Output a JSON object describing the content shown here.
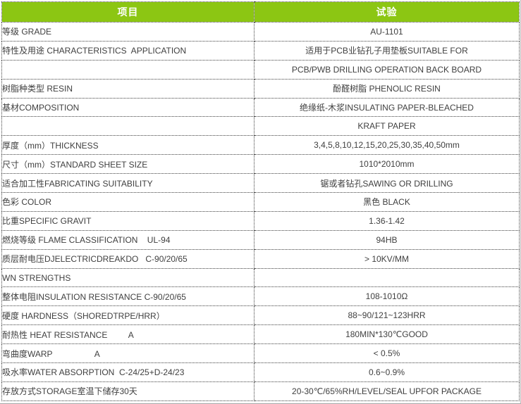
{
  "colors": {
    "header_bg": "#8CC613",
    "header_text": "#FFFFFF",
    "body_text": "#3F3F3F",
    "border": "#404040"
  },
  "table": {
    "headers": {
      "item": "项目",
      "value": "试验"
    },
    "rows": [
      {
        "item": "等级 GRADE",
        "value": "AU-1101"
      },
      {
        "item": "特性及用途 CHARACTERISTICS  APPLICATION",
        "value": "适用于PCB业钻孔子用垫板SUITABLE FOR"
      },
      {
        "item": "",
        "value": "PCB/PWB DRILLING OPERATION BACK BOARD"
      },
      {
        "item": "树脂种类型 RESIN",
        "value": "酚醛树脂 PHENOLIC RESIN"
      },
      {
        "item": "基材COMPOSITION",
        "value": "绝缘纸-木浆INSULATING PAPER-BLEACHED"
      },
      {
        "item": "",
        "value": "KRAFT PAPER"
      },
      {
        "item": "厚度（mm）THICKNESS",
        "value": "3,4,5,8,10,12,15,20,25,30,35,40,50mm"
      },
      {
        "item": "尺寸（mm）STANDARD SHEET SIZE",
        "value": "1010*2010mm"
      },
      {
        "item": "适合加工性FABRICATING SUITABILITY",
        "value": "锯或者钻孔SAWING OR DRILLING"
      },
      {
        "item": "色彩 COLOR",
        "value": "黑色 BLACK"
      },
      {
        "item": "比重SPECIFIC GRAVIT",
        "value": "1.36-1.42"
      },
      {
        "item": "燃烧等级 FLAME CLASSIFICATION    UL-94",
        "value": "94HB"
      },
      {
        "item": "质层耐电压DJELECTRICDREAKDO   C-90/20/65",
        "value": "> 10KV/MM"
      },
      {
        "item": "WN STRENGTHS",
        "value": ""
      },
      {
        "item": "整体电阻INSULATION RESISTANCE C-90/20/65",
        "value": "108-1010Ω"
      },
      {
        "item": "硬度 HARDNESS（SHOREDTRPE/HRR）",
        "value": "88~90/121~123HRR"
      },
      {
        "item": "耐热性 HEAT RESISTANCE         A",
        "value": "180MIN*130℃GOOD"
      },
      {
        "item": "弯曲度WARP                  A",
        "value": "< 0.5%"
      },
      {
        "item": "吸水率WATER ABSORPTION  C-24/25+D-24/23",
        "value": "0.6~0.9%"
      },
      {
        "item": "存放方式STORAGE室温下储存30天",
        "value": "20-30℃/65%RH/LEVEL/SEAL UPFOR PACKAGE"
      }
    ]
  }
}
